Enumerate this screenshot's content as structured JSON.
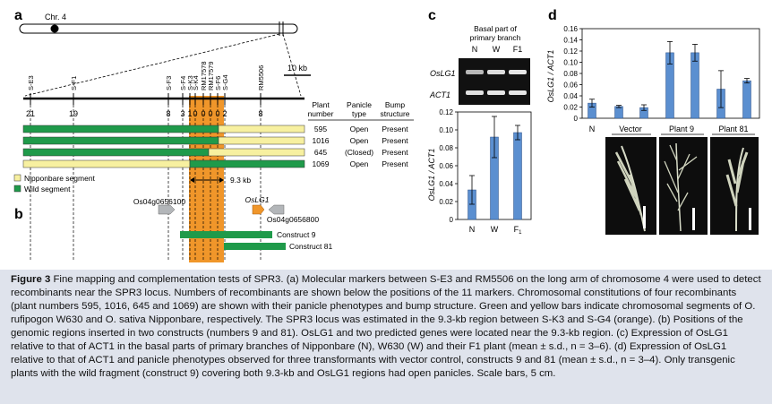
{
  "panel_a": {
    "label": "a",
    "chromosome": "Chr. 4",
    "scale_bar": "10 kb",
    "markers": [
      "S-E3",
      "S-F1",
      "S-F3",
      "S-F4",
      "S-K3",
      "S-K4",
      "RM17578",
      "RM17579",
      "S-F6",
      "S-G4",
      "RM5506"
    ],
    "recombinant_counts": [
      "21",
      "19",
      "8",
      "3",
      "1",
      "0",
      "0",
      "0",
      "0",
      "2",
      "8"
    ],
    "table_headers": {
      "plant": [
        "Plant",
        "number"
      ],
      "panicle": [
        "Panicle",
        "type"
      ],
      "bump": [
        "Bump",
        "structure"
      ]
    },
    "rows": [
      {
        "plant": "595",
        "panicle": "Open",
        "bump": "Present"
      },
      {
        "plant": "1016",
        "panicle": "Open",
        "bump": "Present"
      },
      {
        "plant": "645",
        "panicle": "(Closed)",
        "bump": "Present"
      },
      {
        "plant": "1069",
        "panicle": "Open",
        "bump": "Present"
      }
    ],
    "legend": {
      "nipponbare": "Nipponbare segment",
      "wild": "Wild segment"
    },
    "region_label": "9.3 kb",
    "colors": {
      "wild": "#1f9a4a",
      "nipponbare": "#f7f0a0",
      "region": "#f0962a",
      "gene_grey": "#b3b6b9",
      "gene_orange": "#f0962a"
    }
  },
  "panel_b": {
    "label": "b",
    "genes": {
      "g1": "Os04g0656100",
      "g2": "OsLG1",
      "g3": "Os04g0656800"
    },
    "constructs": [
      "Construct 9",
      "Construct 81"
    ]
  },
  "panel_c": {
    "label": "c",
    "gel_title": [
      "Basal part of",
      "primary branch"
    ],
    "lanes": [
      "N",
      "W",
      "F1"
    ],
    "gel_rows": [
      "OsLG1",
      "ACT1"
    ],
    "chart_data": {
      "type": "bar",
      "categories": [
        "N",
        "W",
        "F1"
      ],
      "values": [
        0.033,
        0.092,
        0.097
      ],
      "errors": [
        0.016,
        0.023,
        0.008
      ],
      "ylabel": "OsLG1 / ACT1",
      "ylim": [
        0,
        0.12
      ],
      "yticks": [
        "0",
        "0.02",
        "0.04",
        "0.06",
        "0.08",
        "0.10",
        "0.12"
      ],
      "bar_color": "#5b8fd0"
    }
  },
  "panel_d": {
    "label": "d",
    "groups": [
      "N",
      "Vector",
      "Plant 9",
      "Plant 81"
    ],
    "chart_data": {
      "type": "bar",
      "categories": [
        "N",
        "Vector",
        "Vector",
        "Plant 9",
        "Plant 9",
        "Plant 81",
        "Plant 81"
      ],
      "values": [
        0.027,
        0.021,
        0.019,
        0.117,
        0.117,
        0.052,
        0.067
      ],
      "errors": [
        0.007,
        0.002,
        0.005,
        0.02,
        0.015,
        0.033,
        0.004
      ],
      "ylabel": "OsLG1 / ACT1",
      "ylim": [
        0,
        0.16
      ],
      "yticks": [
        "0",
        "0.02",
        "0.04",
        "0.06",
        "0.08",
        "0.10",
        "0.12",
        "0.14",
        "0.16"
      ],
      "bar_color": "#5b8fd0"
    }
  },
  "caption": {
    "fig": "Figure 3",
    "text": " Fine mapping and complementation tests of SPR3. (a) Molecular markers between S-E3 and RM5506 on the long arm of chromosome 4 were used to detect recombinants near the SPR3 locus. Numbers of recombinants are shown below the positions of the 11 markers. Chromosomal constitutions of four recombinants (plant numbers 595, 1016, 645 and 1069) are shown with their panicle phenotypes and bump structure. Green and yellow bars indicate chromosomal segments of O. rufipogon W630 and O. sativa Nipponbare, respectively. The SPR3 locus was estimated in the 9.3-kb region between S-K3 and S-G4 (orange). (b) Positions of the genomic regions inserted in two constructs (numbers 9 and 81). OsLG1 and two predicted genes were located near the 9.3-kb region. (c) Expression of OsLG1 relative to that of ACT1 in the basal parts of primary branches of Nipponbare (N), W630 (W) and their F1 plant (mean ± s.d., n = 3–6). (d) Expression of OsLG1 relative to that of ACT1 and panicle phenotypes observed for three transformants with vector control, constructs 9 and 81 (mean ± s.d., n = 3–4). Only transgenic plants with the wild fragment (construct 9) covering both 9.3-kb and OsLG1 regions had open panicles. Scale bars, 5 cm."
  }
}
